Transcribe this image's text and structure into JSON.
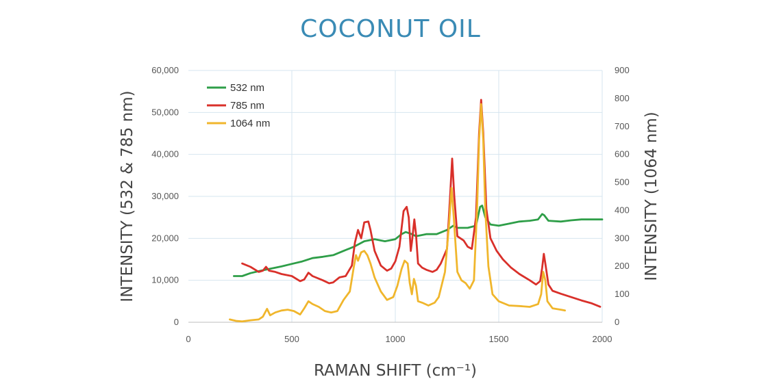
{
  "chart_data": {
    "type": "line",
    "title": "COCONUT OIL",
    "xlabel": "RAMAN SHIFT (cm⁻¹)",
    "ylabel_left": "INTENSITY (532 & 785 nm)",
    "ylabel_right": "INTENSITY (1064 nm)",
    "xlim": [
      0,
      2000
    ],
    "ylim_left": [
      0,
      60000
    ],
    "ylim_right": [
      0,
      900
    ],
    "x_ticks": [
      "0",
      "500",
      "1000",
      "1500",
      "2000"
    ],
    "y_ticks_left": [
      "0",
      "10,000",
      "20,000",
      "30,000",
      "40,000",
      "50,000",
      "60,000"
    ],
    "y_ticks_right": [
      "0",
      "100",
      "200",
      "300",
      "400",
      "500",
      "600",
      "700",
      "800",
      "900"
    ],
    "grid": true,
    "legend_position": "top-left",
    "colors": {
      "title": "#3a8bb5",
      "grid": "#d6e4ef"
    },
    "series": [
      {
        "name": "532 nm",
        "axis": "left",
        "color": "#2e9e48",
        "points": [
          [
            220,
            11000
          ],
          [
            260,
            11000
          ],
          [
            300,
            11700
          ],
          [
            350,
            12300
          ],
          [
            400,
            12800
          ],
          [
            450,
            13300
          ],
          [
            500,
            13900
          ],
          [
            550,
            14500
          ],
          [
            600,
            15300
          ],
          [
            650,
            15600
          ],
          [
            700,
            16000
          ],
          [
            750,
            17000
          ],
          [
            800,
            18000
          ],
          [
            850,
            19300
          ],
          [
            900,
            19800
          ],
          [
            950,
            19300
          ],
          [
            1000,
            19800
          ],
          [
            1030,
            21000
          ],
          [
            1050,
            21500
          ],
          [
            1080,
            21000
          ],
          [
            1100,
            20500
          ],
          [
            1150,
            21000
          ],
          [
            1200,
            21000
          ],
          [
            1250,
            22000
          ],
          [
            1280,
            23000
          ],
          [
            1300,
            22500
          ],
          [
            1350,
            22500
          ],
          [
            1390,
            23000
          ],
          [
            1410,
            27500
          ],
          [
            1420,
            27800
          ],
          [
            1435,
            25000
          ],
          [
            1460,
            23300
          ],
          [
            1500,
            23000
          ],
          [
            1550,
            23500
          ],
          [
            1600,
            24000
          ],
          [
            1650,
            24200
          ],
          [
            1690,
            24500
          ],
          [
            1710,
            25800
          ],
          [
            1720,
            25500
          ],
          [
            1740,
            24200
          ],
          [
            1800,
            24000
          ],
          [
            1850,
            24300
          ],
          [
            1900,
            24500
          ],
          [
            2000,
            24500
          ]
        ]
      },
      {
        "name": "785 nm",
        "axis": "left",
        "color": "#d9302a",
        "points": [
          [
            260,
            14000
          ],
          [
            300,
            13200
          ],
          [
            340,
            12000
          ],
          [
            360,
            12300
          ],
          [
            375,
            13200
          ],
          [
            390,
            12300
          ],
          [
            420,
            12000
          ],
          [
            450,
            11500
          ],
          [
            500,
            11000
          ],
          [
            540,
            9800
          ],
          [
            560,
            10200
          ],
          [
            580,
            11800
          ],
          [
            600,
            11000
          ],
          [
            650,
            10000
          ],
          [
            680,
            9300
          ],
          [
            700,
            9500
          ],
          [
            730,
            10700
          ],
          [
            760,
            11000
          ],
          [
            790,
            13500
          ],
          [
            805,
            19000
          ],
          [
            820,
            22000
          ],
          [
            835,
            20000
          ],
          [
            850,
            23800
          ],
          [
            870,
            24000
          ],
          [
            880,
            22000
          ],
          [
            900,
            17000
          ],
          [
            930,
            13500
          ],
          [
            960,
            12300
          ],
          [
            980,
            12800
          ],
          [
            1000,
            14500
          ],
          [
            1020,
            18000
          ],
          [
            1040,
            26500
          ],
          [
            1055,
            27500
          ],
          [
            1065,
            25000
          ],
          [
            1075,
            17000
          ],
          [
            1080,
            19000
          ],
          [
            1092,
            24500
          ],
          [
            1100,
            21000
          ],
          [
            1110,
            14000
          ],
          [
            1130,
            13000
          ],
          [
            1150,
            12500
          ],
          [
            1180,
            12000
          ],
          [
            1200,
            12500
          ],
          [
            1220,
            14000
          ],
          [
            1250,
            17500
          ],
          [
            1265,
            30000
          ],
          [
            1275,
            39000
          ],
          [
            1285,
            30000
          ],
          [
            1300,
            20500
          ],
          [
            1330,
            19500
          ],
          [
            1350,
            18000
          ],
          [
            1370,
            17500
          ],
          [
            1390,
            25000
          ],
          [
            1405,
            45000
          ],
          [
            1415,
            53000
          ],
          [
            1425,
            45000
          ],
          [
            1440,
            27000
          ],
          [
            1460,
            20000
          ],
          [
            1490,
            17000
          ],
          [
            1520,
            15000
          ],
          [
            1560,
            13000
          ],
          [
            1600,
            11500
          ],
          [
            1650,
            10000
          ],
          [
            1680,
            9000
          ],
          [
            1700,
            9800
          ],
          [
            1710,
            13000
          ],
          [
            1718,
            16300
          ],
          [
            1725,
            14000
          ],
          [
            1740,
            9000
          ],
          [
            1760,
            7500
          ],
          [
            1800,
            6800
          ],
          [
            1850,
            6000
          ],
          [
            1900,
            5200
          ],
          [
            1950,
            4500
          ],
          [
            1990,
            3700
          ]
        ]
      },
      {
        "name": "1064 nm",
        "axis": "right",
        "color": "#f0b62c",
        "points": [
          [
            200,
            10
          ],
          [
            230,
            5
          ],
          [
            260,
            3
          ],
          [
            300,
            7
          ],
          [
            340,
            10
          ],
          [
            360,
            20
          ],
          [
            380,
            48
          ],
          [
            395,
            25
          ],
          [
            420,
            35
          ],
          [
            450,
            42
          ],
          [
            480,
            45
          ],
          [
            510,
            40
          ],
          [
            540,
            28
          ],
          [
            560,
            50
          ],
          [
            580,
            75
          ],
          [
            600,
            65
          ],
          [
            630,
            55
          ],
          [
            660,
            40
          ],
          [
            690,
            35
          ],
          [
            720,
            40
          ],
          [
            750,
            80
          ],
          [
            780,
            110
          ],
          [
            800,
            200
          ],
          [
            810,
            240
          ],
          [
            820,
            220
          ],
          [
            835,
            250
          ],
          [
            850,
            255
          ],
          [
            865,
            240
          ],
          [
            880,
            210
          ],
          [
            900,
            160
          ],
          [
            930,
            110
          ],
          [
            960,
            80
          ],
          [
            990,
            90
          ],
          [
            1010,
            130
          ],
          [
            1030,
            190
          ],
          [
            1045,
            220
          ],
          [
            1060,
            210
          ],
          [
            1070,
            140
          ],
          [
            1080,
            100
          ],
          [
            1090,
            155
          ],
          [
            1100,
            130
          ],
          [
            1110,
            75
          ],
          [
            1130,
            70
          ],
          [
            1160,
            60
          ],
          [
            1190,
            70
          ],
          [
            1210,
            90
          ],
          [
            1240,
            180
          ],
          [
            1260,
            350
          ],
          [
            1272,
            480
          ],
          [
            1282,
            380
          ],
          [
            1300,
            180
          ],
          [
            1320,
            150
          ],
          [
            1340,
            140
          ],
          [
            1360,
            120
          ],
          [
            1380,
            150
          ],
          [
            1395,
            400
          ],
          [
            1405,
            650
          ],
          [
            1415,
            780
          ],
          [
            1425,
            650
          ],
          [
            1435,
            400
          ],
          [
            1450,
            200
          ],
          [
            1470,
            100
          ],
          [
            1500,
            75
          ],
          [
            1550,
            60
          ],
          [
            1600,
            58
          ],
          [
            1650,
            55
          ],
          [
            1690,
            65
          ],
          [
            1705,
            100
          ],
          [
            1715,
            180
          ],
          [
            1725,
            150
          ],
          [
            1735,
            75
          ],
          [
            1760,
            50
          ],
          [
            1800,
            45
          ],
          [
            1820,
            42
          ]
        ]
      }
    ]
  }
}
